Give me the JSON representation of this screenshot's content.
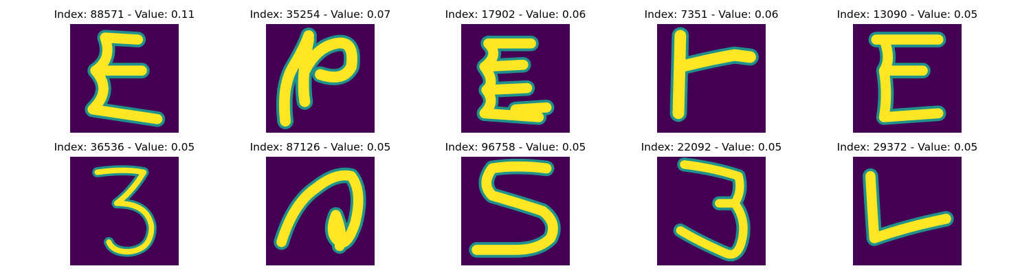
{
  "figure": {
    "background": "#ffffff",
    "colormap": "viridis",
    "colors": {
      "low": "#440154",
      "mid": "#21918c",
      "high": "#fde725"
    },
    "panels": [
      {
        "title": "Index: 88571 - Value: 0.11",
        "glyph": "sigma-like letter E (3 prongs)"
      },
      {
        "title": "Index: 35254 - Value: 0.07",
        "glyph": "rotated N / numeral 2 shape"
      },
      {
        "title": "Index: 17902 - Value: 0.06",
        "glyph": "sigma-like letter E (4 prongs)"
      },
      {
        "title": "Index: 7351 - Value: 0.06",
        "glyph": "rotated T / letter r shape"
      },
      {
        "title": "Index: 13090 - Value: 0.05",
        "glyph": "letter E"
      },
      {
        "title": "Index: 36536 - Value: 0.05",
        "glyph": "digit 3 (thin)"
      },
      {
        "title": "Index: 87126 - Value: 0.05",
        "glyph": "rotated letter a"
      },
      {
        "title": "Index: 96758 - Value: 0.05",
        "glyph": "digit 5 / letter S"
      },
      {
        "title": "Index: 22092 - Value: 0.05",
        "glyph": "digit 3"
      },
      {
        "title": "Index: 29372 - Value: 0.05",
        "glyph": "letter L"
      }
    ]
  }
}
